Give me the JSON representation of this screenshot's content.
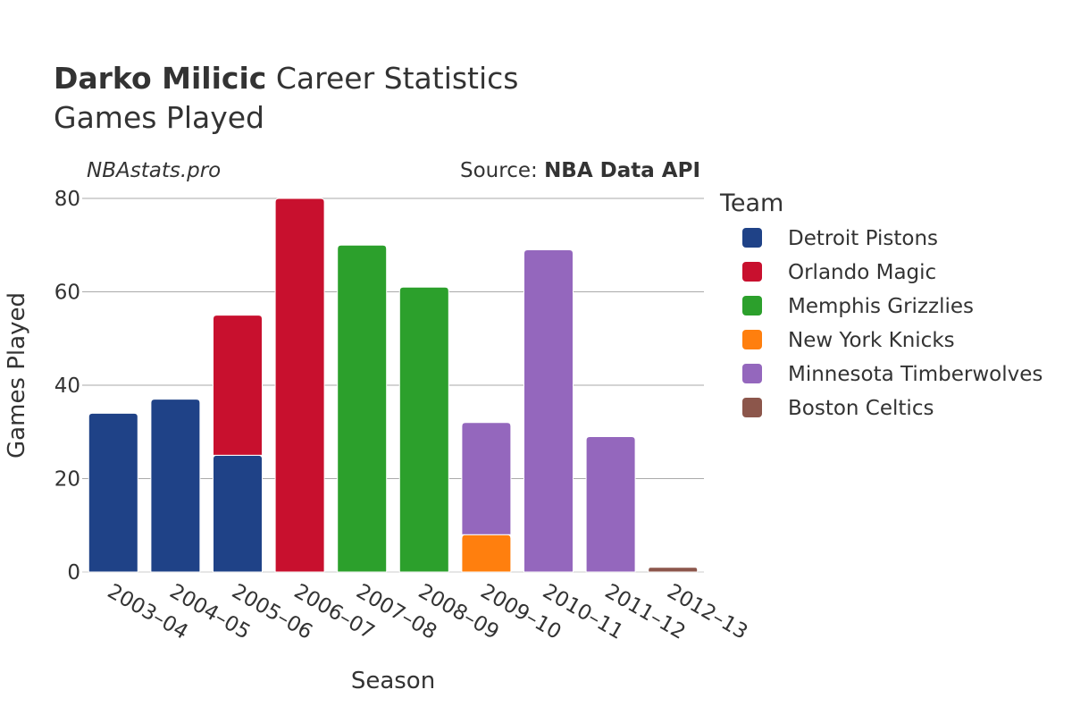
{
  "header": {
    "player_name": "Darko Milicic",
    "title_rest": "Career Statistics",
    "subtitle": "Games Played"
  },
  "watermark": "NBAstats.pro",
  "source": {
    "prefix": "Source: ",
    "name": "NBA Data API"
  },
  "chart_data": {
    "type": "bar",
    "stacked": true,
    "title": "Darko Milicic Career Statistics",
    "subtitle": "Games Played",
    "xlabel": "Season",
    "ylabel": "Games Played",
    "ylim": [
      0,
      80
    ],
    "yticks": [
      0,
      20,
      40,
      60,
      80
    ],
    "grid": true,
    "categories": [
      "2003–04",
      "2004–05",
      "2005–06",
      "2006–07",
      "2007–08",
      "2008–09",
      "2009–10",
      "2010–11",
      "2011–12",
      "2012–13"
    ],
    "legend_title": "Team",
    "legend_position": "right",
    "series": [
      {
        "name": "Detroit Pistons",
        "color": "#1f4287",
        "values": [
          34,
          37,
          25,
          0,
          0,
          0,
          0,
          0,
          0,
          0
        ]
      },
      {
        "name": "Orlando Magic",
        "color": "#c8102e",
        "values": [
          0,
          0,
          30,
          80,
          0,
          0,
          0,
          0,
          0,
          0
        ]
      },
      {
        "name": "Memphis Grizzlies",
        "color": "#2ca02c",
        "values": [
          0,
          0,
          0,
          0,
          70,
          61,
          0,
          0,
          0,
          0
        ]
      },
      {
        "name": "New York Knicks",
        "color": "#ff7f0e",
        "values": [
          0,
          0,
          0,
          0,
          0,
          0,
          8,
          0,
          0,
          0
        ]
      },
      {
        "name": "Minnesota Timberwolves",
        "color": "#9467bd",
        "values": [
          0,
          0,
          0,
          0,
          0,
          0,
          24,
          69,
          29,
          0
        ]
      },
      {
        "name": "Boston Celtics",
        "color": "#8c564b",
        "values": [
          0,
          0,
          0,
          0,
          0,
          0,
          0,
          0,
          0,
          1
        ]
      }
    ]
  }
}
